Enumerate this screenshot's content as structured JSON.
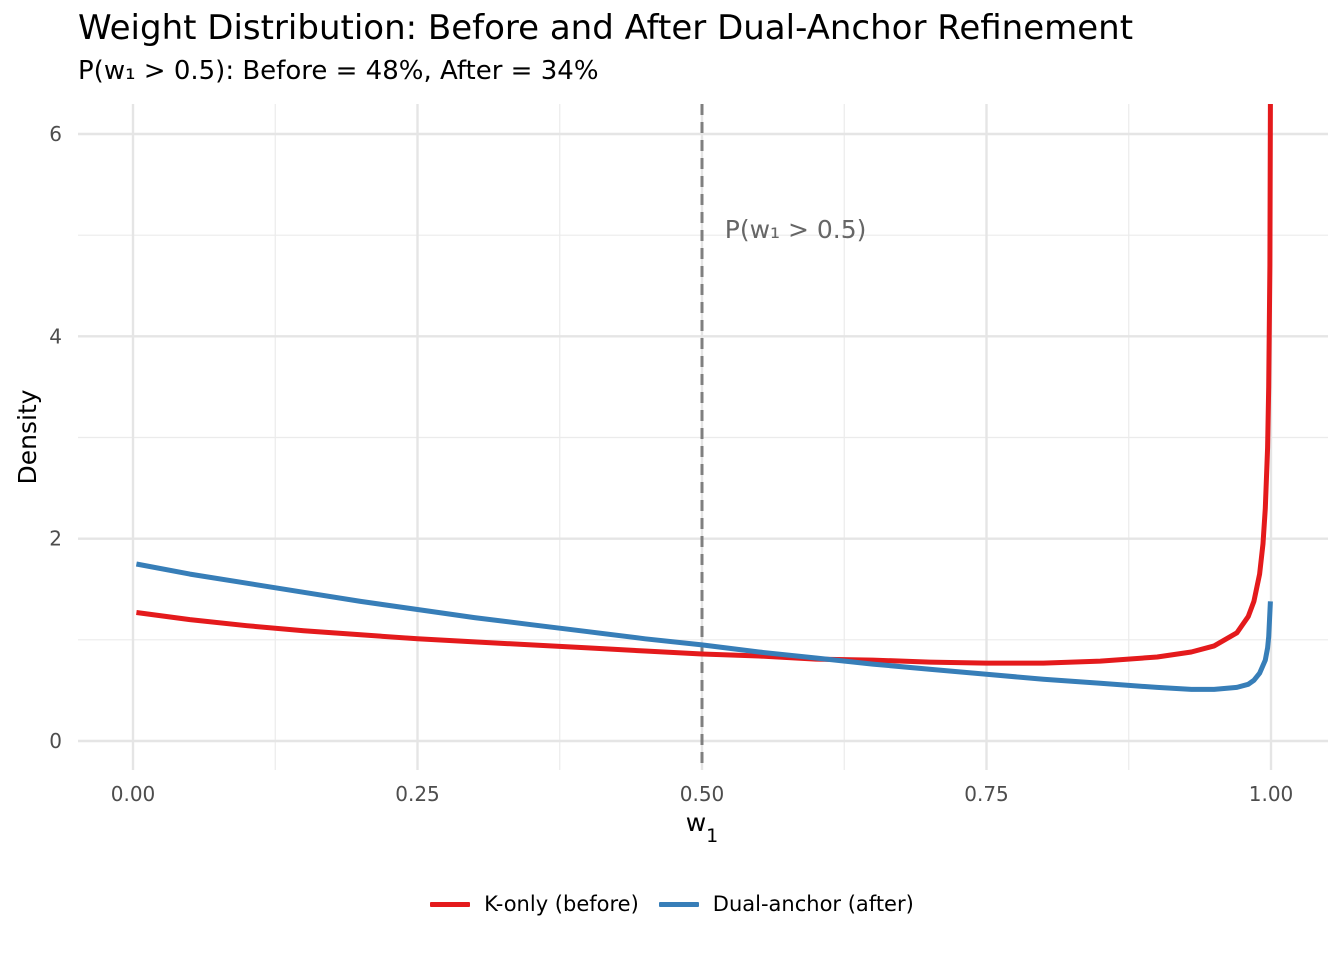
{
  "chart_data": {
    "type": "line",
    "title": "Weight Distribution: Before and After Dual-Anchor Refinement",
    "subtitle": "P(w₁ > 0.5): Before = 48%, After = 34%",
    "xlabel": "w",
    "xlabel_subscript": "1",
    "ylabel": "Density",
    "xlim": [
      0,
      1
    ],
    "ylim": [
      0,
      6.3
    ],
    "x_ticks": [
      0,
      0.25,
      0.5,
      0.75,
      1
    ],
    "x_tick_labels": [
      "0.00",
      "0.25",
      "0.50",
      "0.75",
      "1.00"
    ],
    "y_ticks": [
      0,
      2,
      4,
      6
    ],
    "y_tick_labels": [
      "0",
      "2",
      "4",
      "6"
    ],
    "grid": true,
    "legend_position": "bottom",
    "vline": {
      "x": 0.5,
      "style": "dashed",
      "color": "#7f7f7f"
    },
    "annotation": {
      "text": "P(w₁ > 0.5)",
      "x": 0.52,
      "y": 5.0
    },
    "series": [
      {
        "name": "K-only (before)",
        "color": "#e41a1c",
        "x": [
          0.003,
          0.05,
          0.1,
          0.15,
          0.2,
          0.25,
          0.3,
          0.35,
          0.4,
          0.45,
          0.5,
          0.55,
          0.6,
          0.65,
          0.7,
          0.75,
          0.8,
          0.85,
          0.9,
          0.93,
          0.95,
          0.97,
          0.98,
          0.985,
          0.99,
          0.993,
          0.995,
          0.997,
          0.998,
          0.999,
          0.9995
        ],
        "y": [
          1.27,
          1.2,
          1.14,
          1.09,
          1.05,
          1.01,
          0.98,
          0.95,
          0.92,
          0.89,
          0.86,
          0.84,
          0.81,
          0.8,
          0.78,
          0.77,
          0.77,
          0.79,
          0.83,
          0.88,
          0.94,
          1.07,
          1.23,
          1.38,
          1.65,
          1.95,
          2.3,
          2.9,
          3.5,
          4.7,
          6.3
        ]
      },
      {
        "name": "Dual-anchor (after)",
        "color": "#377eb8",
        "x": [
          0.003,
          0.05,
          0.1,
          0.15,
          0.2,
          0.25,
          0.3,
          0.35,
          0.4,
          0.45,
          0.5,
          0.55,
          0.6,
          0.65,
          0.7,
          0.75,
          0.8,
          0.85,
          0.9,
          0.93,
          0.95,
          0.97,
          0.98,
          0.985,
          0.99,
          0.995,
          0.997,
          0.998,
          0.9995
        ],
        "y": [
          1.75,
          1.65,
          1.56,
          1.47,
          1.38,
          1.3,
          1.22,
          1.15,
          1.08,
          1.01,
          0.95,
          0.88,
          0.82,
          0.76,
          0.71,
          0.66,
          0.61,
          0.57,
          0.53,
          0.51,
          0.51,
          0.53,
          0.56,
          0.6,
          0.67,
          0.8,
          0.92,
          1.03,
          1.38
        ]
      }
    ]
  }
}
